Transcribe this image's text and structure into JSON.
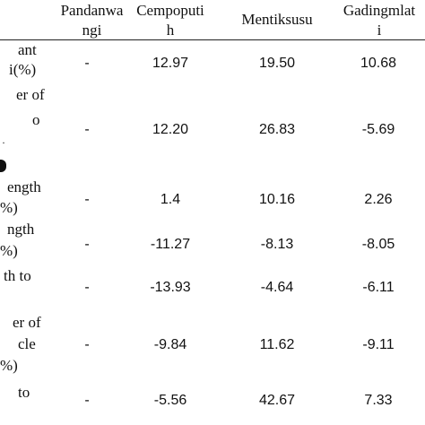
{
  "columns": {
    "pandanwangi": [
      "Pandanwa",
      "ngi"
    ],
    "cempoputih": [
      "Cempoputi",
      "h"
    ],
    "mentiksusu": [
      "Mentiksusu"
    ],
    "gadingmlati": [
      "Gadingmlat",
      "i"
    ]
  },
  "rows": [
    {
      "label": [
        "ant",
        "i(%)"
      ],
      "values": [
        "-",
        "12.97",
        "19.50",
        "10.68"
      ]
    },
    {
      "label": [
        "er of",
        "o",
        "",
        ""
      ],
      "values": [
        "-",
        "12.20",
        "26.83",
        "-5.69"
      ]
    },
    {
      "label": [
        "ength",
        "%)"
      ],
      "values": [
        "-",
        "1.4",
        "10.16",
        "2.26"
      ]
    },
    {
      "label": [
        "ngth",
        "%)"
      ],
      "values": [
        "-",
        "-11.27",
        "-8.13",
        "-8.05"
      ]
    },
    {
      "label": [
        "th to",
        ""
      ],
      "values": [
        "-",
        "-13.93",
        "-4.64",
        "-6.11"
      ]
    },
    {
      "label": [
        "er of",
        "cle",
        "%)"
      ],
      "values": [
        "-",
        "-9.84",
        "11.62",
        "-9.11"
      ]
    },
    {
      "label": [
        "to",
        ""
      ],
      "values": [
        "-",
        "-5.56",
        "42.67",
        "7.33"
      ]
    }
  ]
}
